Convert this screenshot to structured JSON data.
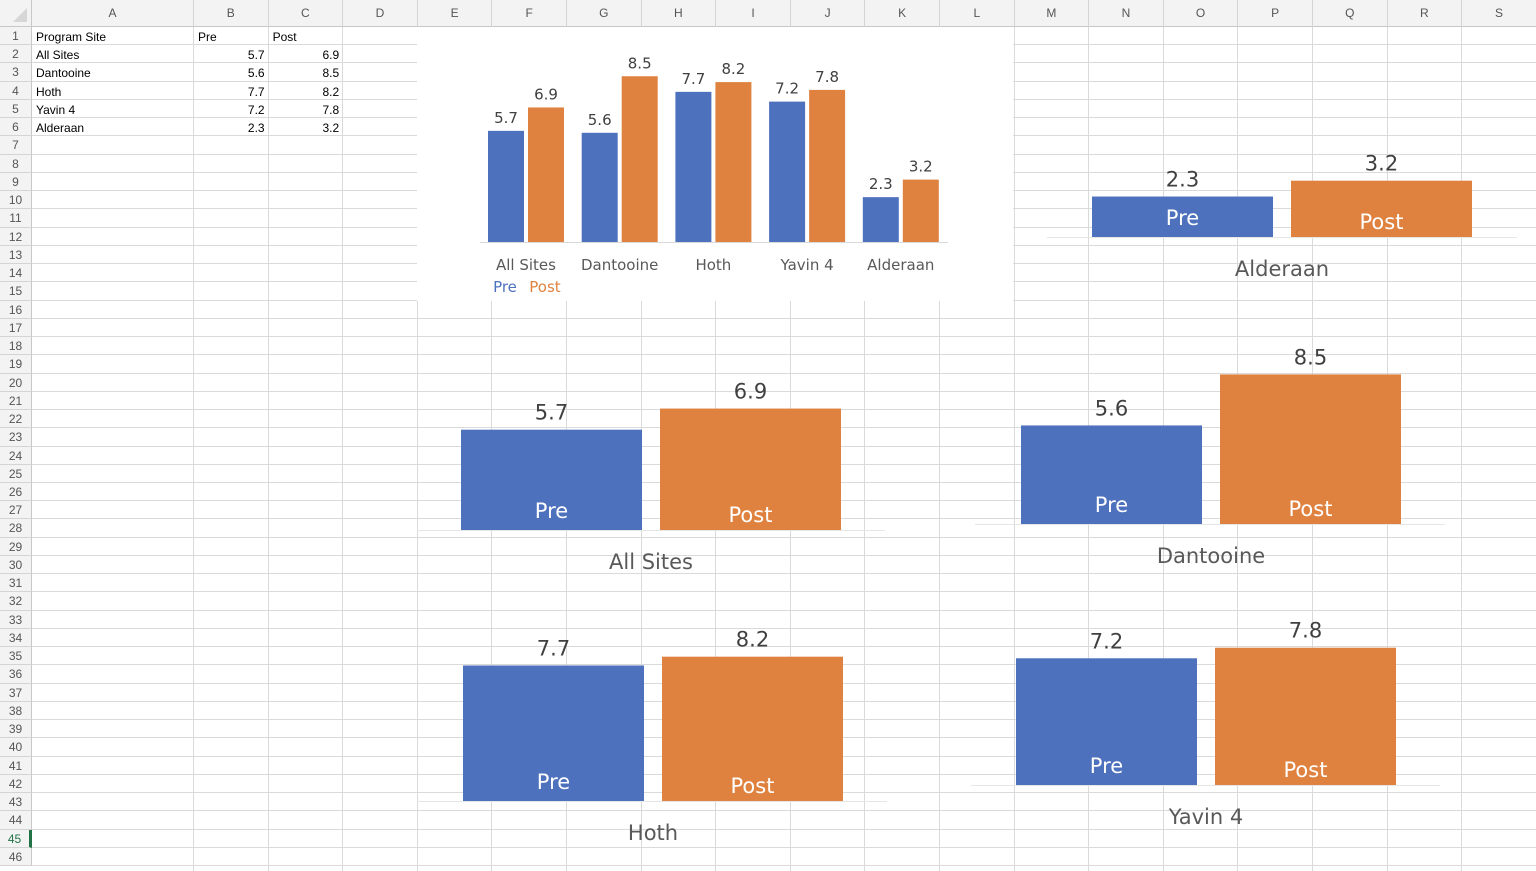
{
  "sheet": {
    "columns": [
      "A",
      "B",
      "C",
      "D",
      "E",
      "F",
      "G",
      "H",
      "I",
      "J",
      "K",
      "L",
      "M",
      "N",
      "O",
      "P",
      "Q",
      "R",
      "S"
    ],
    "row_count": 46,
    "selected_row": 45,
    "cells": [
      [
        "Program Site",
        "Pre",
        "Post"
      ],
      [
        "All Sites",
        "5.7",
        "6.9"
      ],
      [
        "Dantooine",
        "5.6",
        "8.5"
      ],
      [
        "Hoth",
        "7.7",
        "8.2"
      ],
      [
        "Yavin 4",
        "7.2",
        "7.8"
      ],
      [
        "Alderaan",
        "2.3",
        "3.2"
      ]
    ]
  },
  "colors": {
    "pre": "#4e71be",
    "post": "#e0823f",
    "value_text": "#404040",
    "category_text": "#595959",
    "selected": "#217346"
  },
  "chart_data": [
    {
      "type": "bar",
      "categories": [
        "All Sites",
        "Dantooine",
        "Hoth",
        "Yavin 4",
        "Alderaan"
      ],
      "series": [
        {
          "name": "Pre",
          "values": [
            5.7,
            5.6,
            7.7,
            7.2,
            2.3
          ]
        },
        {
          "name": "Post",
          "values": [
            6.9,
            8.5,
            8.2,
            7.8,
            3.2
          ]
        }
      ],
      "legend": "bottom-left",
      "grid": false,
      "data_labels": true,
      "ylim": [
        0,
        8.5
      ]
    },
    {
      "type": "bar",
      "category": "Alderaan",
      "categories": [
        "Pre",
        "Post"
      ],
      "values": [
        2.3,
        3.2
      ],
      "data_labels": true,
      "grid": false
    },
    {
      "type": "bar",
      "category": "All Sites",
      "categories": [
        "Pre",
        "Post"
      ],
      "values": [
        5.7,
        6.9
      ],
      "data_labels": true,
      "grid": false
    },
    {
      "type": "bar",
      "category": "Dantooine",
      "categories": [
        "Pre",
        "Post"
      ],
      "values": [
        5.6,
        8.5
      ],
      "data_labels": true,
      "grid": false
    },
    {
      "type": "bar",
      "category": "Hoth",
      "categories": [
        "Pre",
        "Post"
      ],
      "values": [
        7.7,
        8.2
      ],
      "data_labels": true,
      "grid": false
    },
    {
      "type": "bar",
      "category": "Yavin 4",
      "categories": [
        "Pre",
        "Post"
      ],
      "values": [
        7.2,
        7.8
      ],
      "data_labels": true,
      "grid": false
    }
  ]
}
